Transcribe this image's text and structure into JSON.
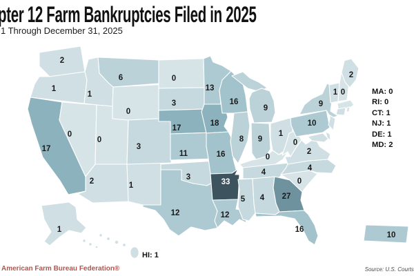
{
  "header": {
    "title": "pter 12 Farm Bankruptcies Filed in 2025",
    "subtitle": "1 Through December 31, 2025"
  },
  "footer": {
    "attribution": "American Farm Bureau Federation®",
    "attribution_color": "#b4544b",
    "source": "Source: U.S. Courts,"
  },
  "chart_data": {
    "type": "heatmap",
    "title": "pter 12 Farm Bankruptcies Filed in 2025",
    "subtitle": "1 Through December 31, 2025",
    "unit": "Chapter 12 farm bankruptcy filings",
    "states": [
      {
        "abbr": "WA",
        "value": 2
      },
      {
        "abbr": "OR",
        "value": 1
      },
      {
        "abbr": "CA",
        "value": 17
      },
      {
        "abbr": "ID",
        "value": 1
      },
      {
        "abbr": "NV",
        "value": 0
      },
      {
        "abbr": "UT",
        "value": 0
      },
      {
        "abbr": "AZ",
        "value": 2
      },
      {
        "abbr": "NM",
        "value": 1
      },
      {
        "abbr": "MT",
        "value": 6
      },
      {
        "abbr": "WY",
        "value": 0
      },
      {
        "abbr": "CO",
        "value": 3
      },
      {
        "abbr": "ND",
        "value": 0
      },
      {
        "abbr": "SD",
        "value": 3
      },
      {
        "abbr": "NE",
        "value": 17
      },
      {
        "abbr": "KS",
        "value": 11
      },
      {
        "abbr": "OK",
        "value": 3
      },
      {
        "abbr": "TX",
        "value": 12
      },
      {
        "abbr": "MN",
        "value": 13
      },
      {
        "abbr": "IA",
        "value": 18
      },
      {
        "abbr": "MO",
        "value": 16
      },
      {
        "abbr": "AR",
        "value": 33
      },
      {
        "abbr": "LA",
        "value": 12
      },
      {
        "abbr": "WI",
        "value": 16
      },
      {
        "abbr": "IL",
        "value": 8
      },
      {
        "abbr": "MI",
        "value": 9
      },
      {
        "abbr": "IN",
        "value": 9
      },
      {
        "abbr": "OH",
        "value": 1
      },
      {
        "abbr": "KY",
        "value": 0
      },
      {
        "abbr": "TN",
        "value": 4
      },
      {
        "abbr": "MS",
        "value": 5
      },
      {
        "abbr": "AL",
        "value": 4
      },
      {
        "abbr": "GA",
        "value": 27
      },
      {
        "abbr": "FL",
        "value": 16
      },
      {
        "abbr": "SC",
        "value": 0
      },
      {
        "abbr": "NC",
        "value": 4
      },
      {
        "abbr": "VA",
        "value": 2
      },
      {
        "abbr": "WV",
        "value": 0
      },
      {
        "abbr": "PA",
        "value": 10
      },
      {
        "abbr": "NY",
        "value": 9
      },
      {
        "abbr": "VT",
        "value": 1
      },
      {
        "abbr": "NH",
        "value": 0
      },
      {
        "abbr": "ME",
        "value": 2
      },
      {
        "abbr": "MA",
        "value": 0
      },
      {
        "abbr": "RI",
        "value": 0
      },
      {
        "abbr": "CT",
        "value": 1
      },
      {
        "abbr": "NJ",
        "value": 1
      },
      {
        "abbr": "DE",
        "value": 1
      },
      {
        "abbr": "MD",
        "value": 2
      },
      {
        "abbr": "AK",
        "value": 1
      },
      {
        "abbr": "HI",
        "value": 1
      },
      {
        "abbr": "PR",
        "value": 10
      }
    ],
    "legend_items": [
      {
        "abbr": "MA",
        "value": 0
      },
      {
        "abbr": "RI",
        "value": 0
      },
      {
        "abbr": "CT",
        "value": 1
      },
      {
        "abbr": "NJ",
        "value": 1
      },
      {
        "abbr": "DE",
        "value": 1
      },
      {
        "abbr": "MD",
        "value": 2
      }
    ],
    "hi_label": "HI: 1",
    "color_scale": [
      {
        "max": 0,
        "color": "#d7e4e7"
      },
      {
        "max": 2,
        "color": "#cfdfe3"
      },
      {
        "max": 5,
        "color": "#c5d9de"
      },
      {
        "max": 9,
        "color": "#bad2d8"
      },
      {
        "max": 13,
        "color": "#adc9d1"
      },
      {
        "max": 16,
        "color": "#a2c3cb"
      },
      {
        "max": 18,
        "color": "#8cb2bd"
      },
      {
        "max": 27,
        "color": "#6e929e"
      },
      {
        "max": 99,
        "color": "#3d535d"
      }
    ],
    "label_color": "#1a1a1a",
    "label_color_on_dark": "#ffffff",
    "white_label_min": 28
  }
}
